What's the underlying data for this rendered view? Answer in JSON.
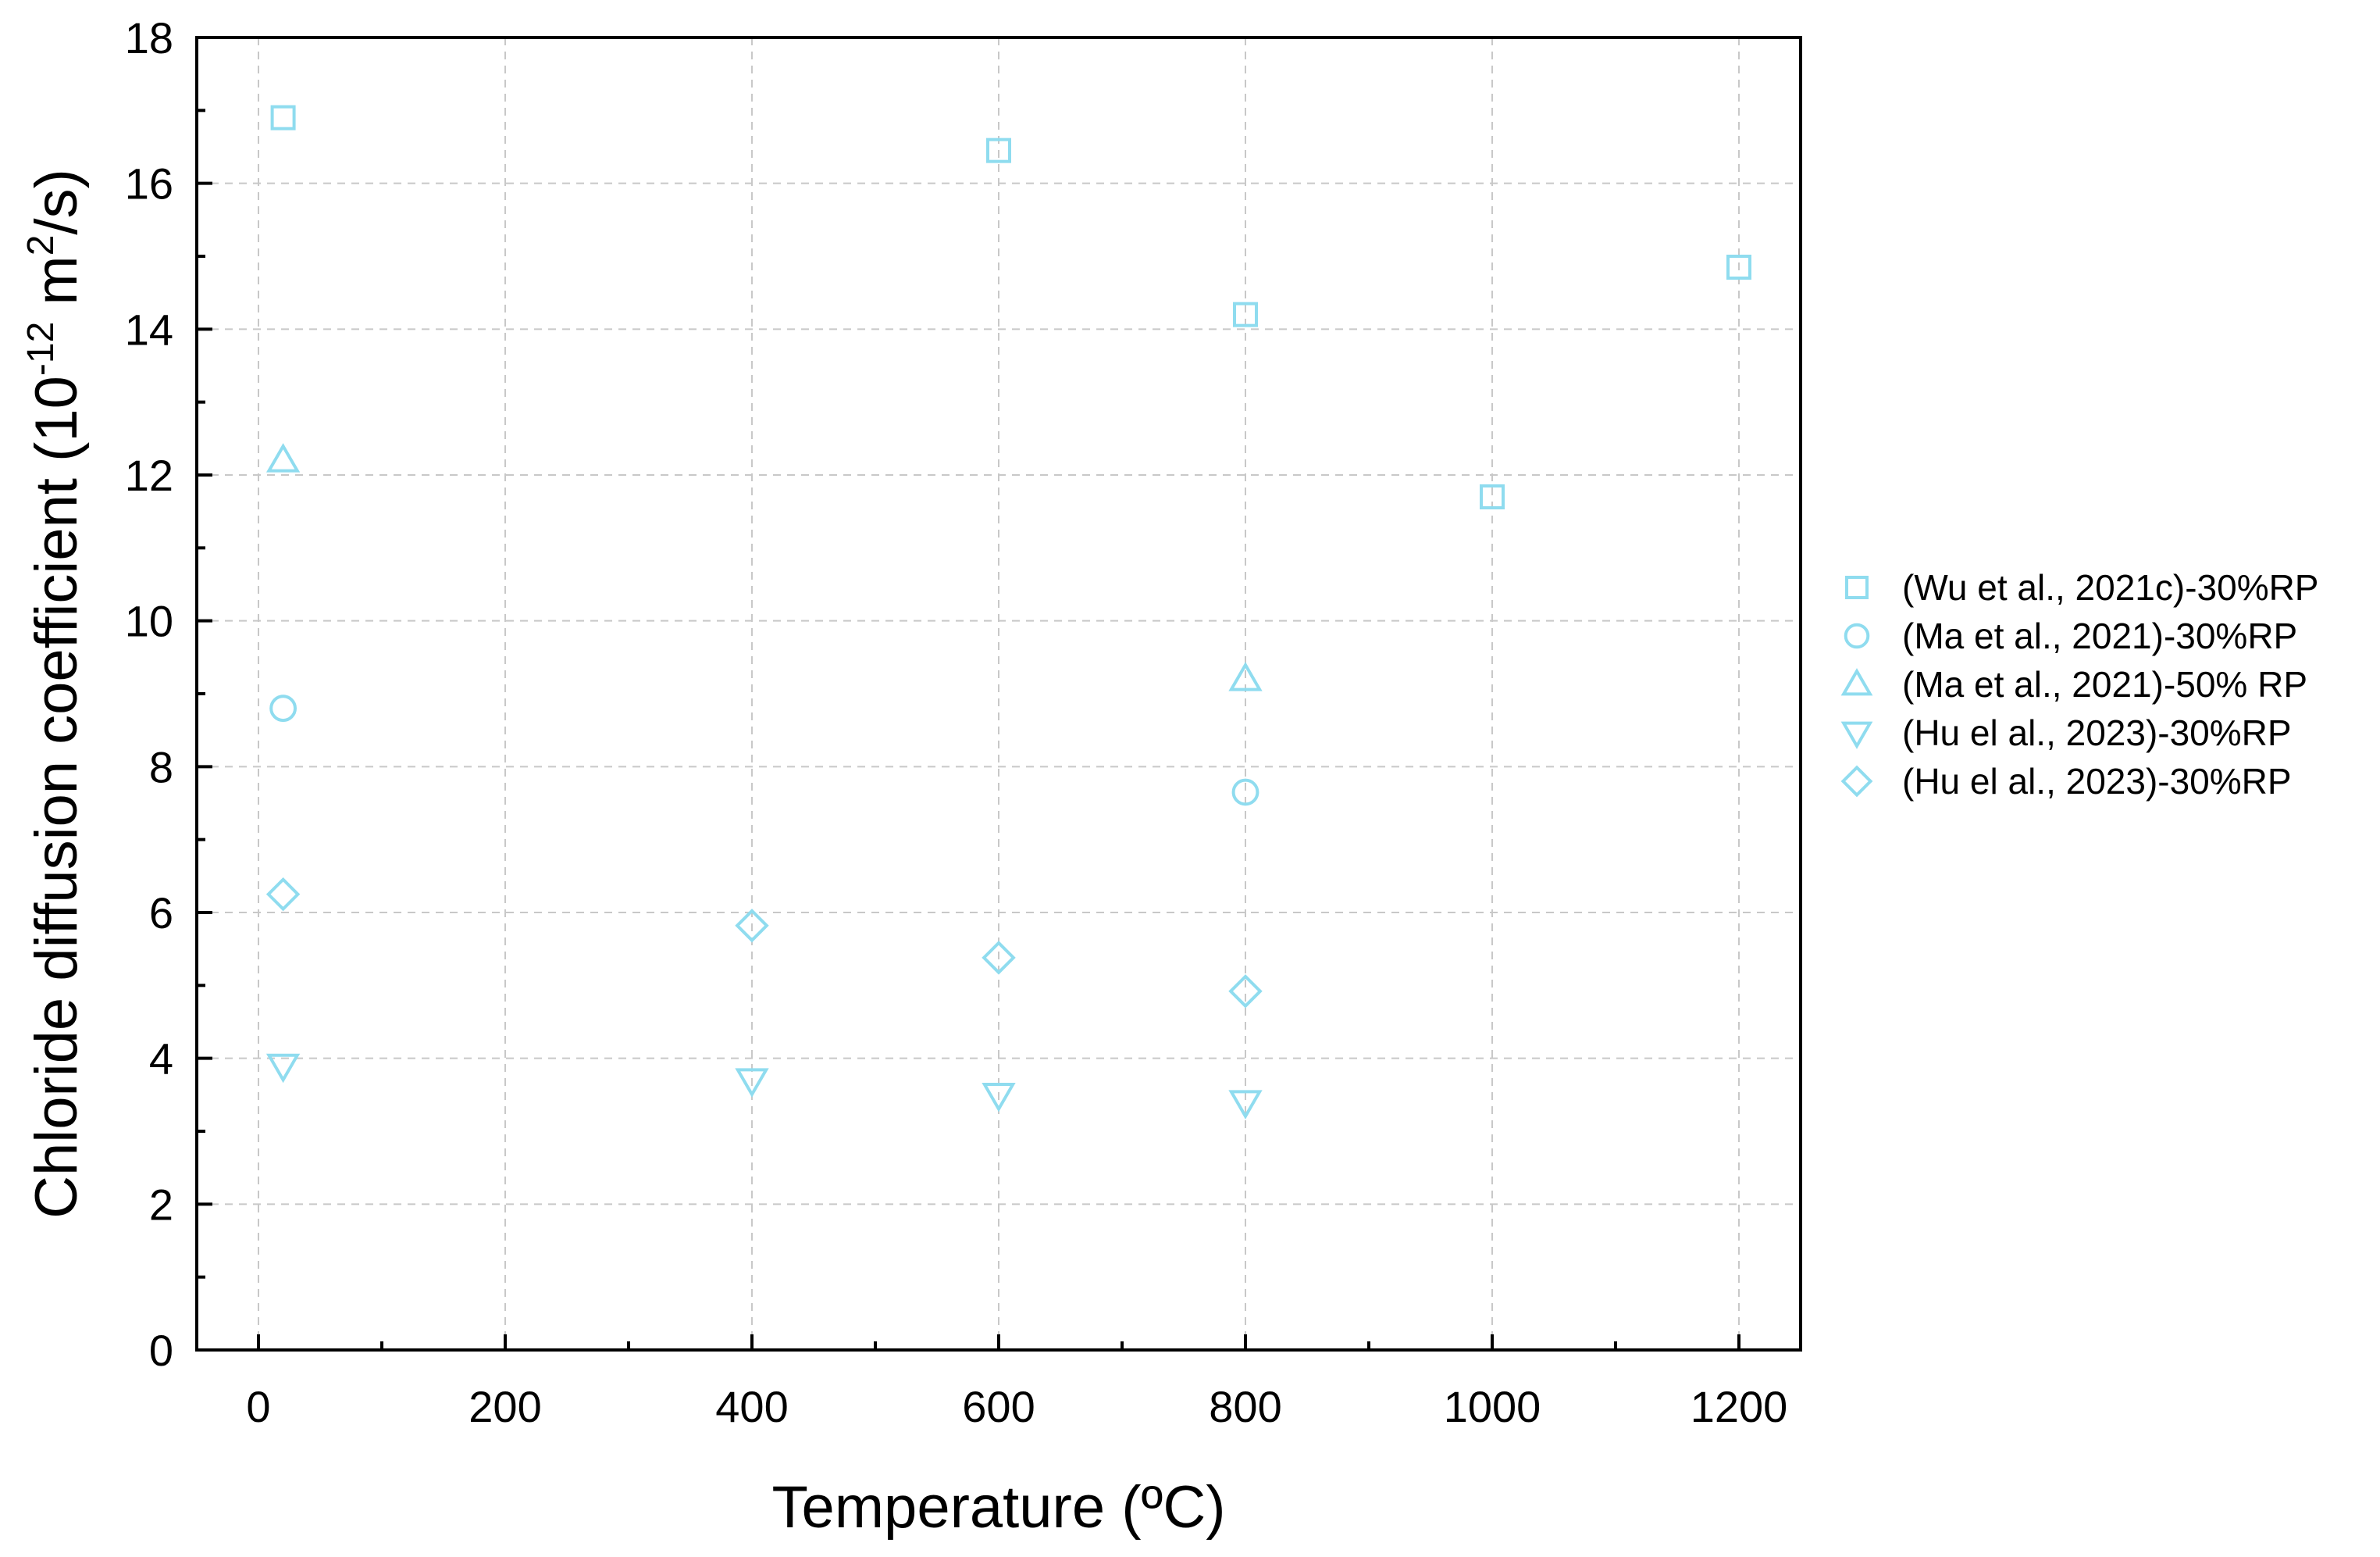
{
  "chart_data": {
    "type": "scatter",
    "xlabel": "Temperature (ºC)",
    "ylabel_main": "Chloride diffusion coefficient (10",
    "ylabel_exp1": "-12",
    "ylabel_mid": " m",
    "ylabel_exp2": "2",
    "ylabel_end": "/s)",
    "xlim": [
      -50,
      1250
    ],
    "ylim": [
      0,
      18
    ],
    "xticks": [
      0,
      200,
      400,
      600,
      800,
      1000,
      1200
    ],
    "yticks": [
      0,
      2,
      4,
      6,
      8,
      10,
      12,
      14,
      16,
      18
    ],
    "grid": true,
    "legend_position": "right",
    "marker_color": "#8fdcef",
    "series": [
      {
        "name": "(Wu et al., 2021c)-30%RP",
        "marker": "square",
        "x": [
          20,
          600,
          800,
          1000,
          1200
        ],
        "y": [
          16.9,
          16.45,
          14.2,
          11.7,
          14.85
        ]
      },
      {
        "name": "(Ma et al., 2021)-30%RP",
        "marker": "circle",
        "x": [
          20,
          800
        ],
        "y": [
          8.8,
          7.65
        ]
      },
      {
        "name": "(Ma et al., 2021)-50% RP",
        "marker": "triangle-up",
        "x": [
          20,
          800
        ],
        "y": [
          12.2,
          9.2
        ]
      },
      {
        "name": "(Hu el al., 2023)-30%RP",
        "marker": "triangle-down",
        "x": [
          20,
          400,
          600,
          800
        ],
        "y": [
          3.9,
          3.7,
          3.5,
          3.4
        ]
      },
      {
        "name": "(Hu el al., 2023)-30%RP",
        "marker": "diamond",
        "x": [
          20,
          400,
          600,
          800
        ],
        "y": [
          6.25,
          5.82,
          5.38,
          4.92
        ]
      }
    ]
  }
}
